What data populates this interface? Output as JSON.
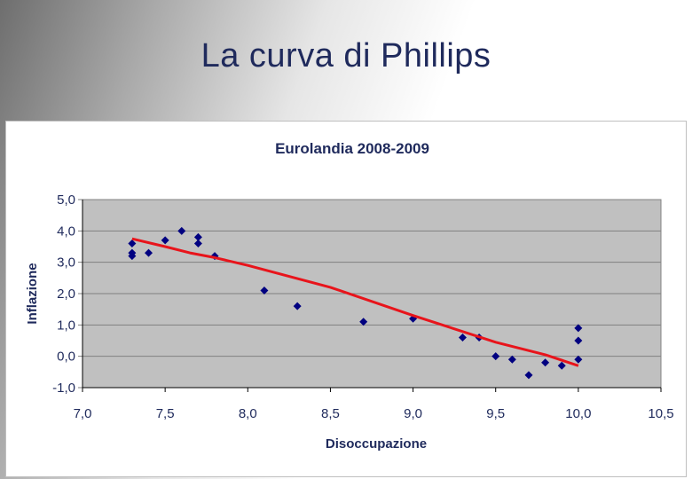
{
  "slide": {
    "title": "La curva di Phillips"
  },
  "chart_data": {
    "type": "scatter",
    "title": "Eurolandia 2008-2009",
    "xlabel": "Disoccupazione",
    "ylabel": "Inflazione",
    "xlim": [
      7.0,
      10.5
    ],
    "ylim": [
      -1.0,
      5.0
    ],
    "x_ticks": [
      7.0,
      7.5,
      8.0,
      8.5,
      9.0,
      9.5,
      10.0,
      10.5
    ],
    "y_ticks": [
      -1.0,
      0.0,
      1.0,
      2.0,
      3.0,
      4.0,
      5.0
    ],
    "x_tick_labels": [
      "7,0",
      "7,5",
      "8,0",
      "8,5",
      "9,0",
      "9,5",
      "10,0",
      "10,5"
    ],
    "y_tick_labels": [
      "-1,0",
      "0,0",
      "1,0",
      "2,0",
      "3,0",
      "4,0",
      "5,0"
    ],
    "grid": "horizontal",
    "plot_background": "#c0c0c0",
    "series": [
      {
        "marker": "diamond",
        "color": "#000080",
        "points": [
          {
            "x": 7.3,
            "y": 3.6
          },
          {
            "x": 7.3,
            "y": 3.3
          },
          {
            "x": 7.3,
            "y": 3.2
          },
          {
            "x": 7.4,
            "y": 3.3
          },
          {
            "x": 7.5,
            "y": 3.7
          },
          {
            "x": 7.6,
            "y": 4.0
          },
          {
            "x": 7.7,
            "y": 3.8
          },
          {
            "x": 7.7,
            "y": 3.6
          },
          {
            "x": 7.8,
            "y": 3.2
          },
          {
            "x": 8.1,
            "y": 2.1
          },
          {
            "x": 8.3,
            "y": 1.6
          },
          {
            "x": 8.7,
            "y": 1.1
          },
          {
            "x": 9.0,
            "y": 1.2
          },
          {
            "x": 9.3,
            "y": 0.6
          },
          {
            "x": 9.4,
            "y": 0.6
          },
          {
            "x": 9.5,
            "y": 0.0
          },
          {
            "x": 9.6,
            "y": -0.1
          },
          {
            "x": 9.7,
            "y": -0.6
          },
          {
            "x": 9.8,
            "y": -0.2
          },
          {
            "x": 9.9,
            "y": -0.3
          },
          {
            "x": 10.0,
            "y": -0.1
          },
          {
            "x": 10.0,
            "y": 0.5
          },
          {
            "x": 10.0,
            "y": 0.9
          }
        ]
      }
    ],
    "trendline": {
      "color": "#e8141b",
      "points": [
        {
          "x": 7.3,
          "y": 3.75
        },
        {
          "x": 7.5,
          "y": 3.5
        },
        {
          "x": 7.65,
          "y": 3.3
        },
        {
          "x": 7.8,
          "y": 3.15
        },
        {
          "x": 8.0,
          "y": 2.9
        },
        {
          "x": 8.5,
          "y": 2.2
        },
        {
          "x": 9.0,
          "y": 1.3
        },
        {
          "x": 9.5,
          "y": 0.45
        },
        {
          "x": 9.8,
          "y": 0.05
        },
        {
          "x": 10.0,
          "y": -0.3
        }
      ]
    }
  }
}
